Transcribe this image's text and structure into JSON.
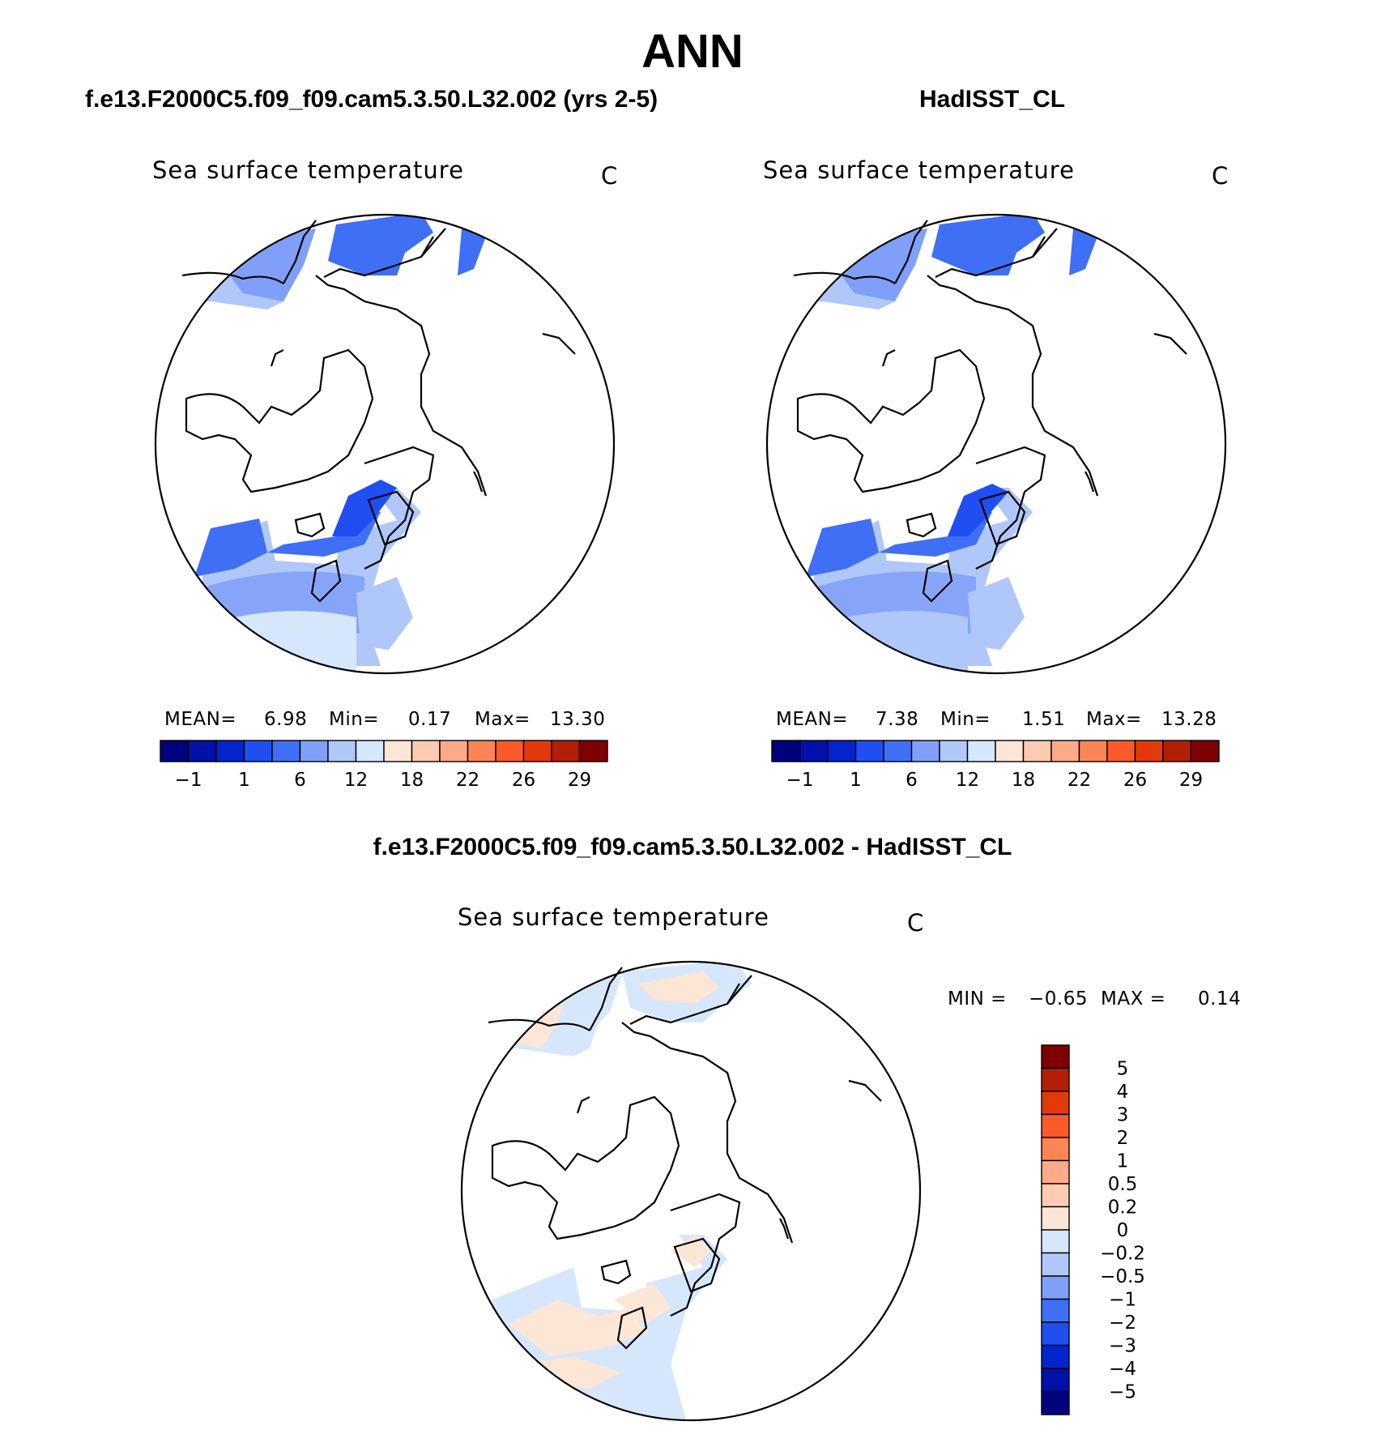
{
  "title": "ANN",
  "panels": [
    {
      "title": "f.e13.F2000C5.f09_f09.cam5.3.50.L32.002 (yrs 2-5)",
      "variable": "Sea surface temperature",
      "units": "C",
      "stats": {
        "mean_label": "MEAN=",
        "mean": "6.98",
        "min_label": "Min=",
        "min": "0.17",
        "max_label": "Max=",
        "max": "13.30"
      }
    },
    {
      "title": "HadISST_CL",
      "variable": "Sea surface temperature",
      "units": "C",
      "stats": {
        "mean_label": "MEAN=",
        "mean": "7.38",
        "min_label": "Min=",
        "min": "1.51",
        "max_label": "Max=",
        "max": "13.28"
      }
    },
    {
      "title": "f.e13.F2000C5.f09_f09.cam5.3.50.L32.002 - HadISST_CL",
      "variable": "Sea surface temperature",
      "units": "C",
      "stats": {
        "min_label": "MIN =",
        "min": "−0.65",
        "max_label": "MAX =",
        "max": "0.14"
      }
    }
  ],
  "sst_colorbar": {
    "colors": [
      "#00007f",
      "#0010a8",
      "#0025cc",
      "#1f4ff0",
      "#3f6ff5",
      "#7f9ff8",
      "#b0c7fa",
      "#d6e7fc",
      "#fce6d6",
      "#fccbb1",
      "#fcaa88",
      "#fc8555",
      "#fb5a2a",
      "#e23a0c",
      "#b21f06",
      "#7f0000"
    ],
    "labels": [
      "−1",
      "1",
      "6",
      "12",
      "18",
      "22",
      "26",
      "29"
    ]
  },
  "diff_colorbar": {
    "colors": [
      "#7f0000",
      "#b21f06",
      "#e23a0c",
      "#fb5a2a",
      "#fc8555",
      "#fcaa88",
      "#fccbb1",
      "#fce6d6",
      "#d6e7fc",
      "#b0c7fa",
      "#7f9ff8",
      "#3f6ff5",
      "#1f4ff0",
      "#0025cc",
      "#0010a8",
      "#00007f"
    ],
    "labels": [
      "5",
      "4",
      "3",
      "2",
      "1",
      "0.5",
      "0.2",
      "0",
      "−0.2",
      "−0.5",
      "−1",
      "−2",
      "−3",
      "−4",
      "−5"
    ]
  }
}
